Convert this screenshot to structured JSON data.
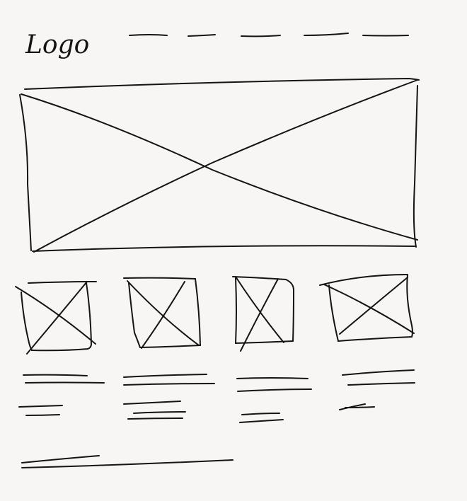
{
  "header": {
    "logo_text": "Logo",
    "nav_item_count": 5
  },
  "cards": {
    "count": 4
  },
  "colors": {
    "ink": "#141414",
    "paper": "#f7f6f4"
  }
}
